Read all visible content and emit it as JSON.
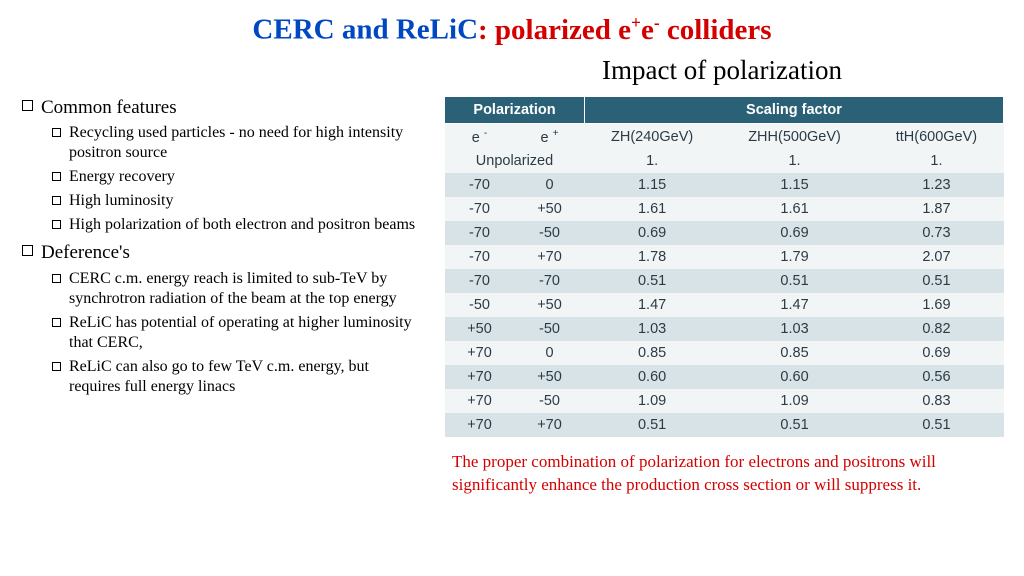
{
  "title": {
    "part1": "CERC and ReLiC",
    "part2_prefix": ": polarized e",
    "part2_sup1": "+",
    "part2_mid": "e",
    "part2_sup2": "-",
    "part2_suffix": " colliders"
  },
  "subtitle": "Impact of polarization",
  "left": {
    "sections": [
      {
        "heading": "Common features",
        "items": [
          "Recycling used particles - no need for high intensity positron source",
          "Energy recovery",
          "High luminosity",
          "High polarization of both electron and positron beams"
        ]
      },
      {
        "heading": "Deference's",
        "items": [
          "CERC c.m. energy reach is limited to sub-TeV by synchrotron radiation of the beam at the top energy",
          "ReLiC has potential of operating at higher luminosity that CERC,",
          "ReLiC can also go to few TeV c.m. energy, but requires full energy linacs"
        ]
      }
    ]
  },
  "table": {
    "header_group1": "Polarization",
    "header_group2": "Scaling factor",
    "cols": [
      "e⁻",
      "e⁺",
      "ZH(240GeV)",
      "ZHH(500GeV)",
      "ttH(600GeV)"
    ],
    "unpolarized_label": "Unpolarized",
    "unpolarized_vals": [
      "1.",
      "1.",
      "1."
    ],
    "rows": [
      [
        "-70",
        "0",
        "1.15",
        "1.15",
        "1.23"
      ],
      [
        "-70",
        "+50",
        "1.61",
        "1.61",
        "1.87"
      ],
      [
        "-70",
        "-50",
        "0.69",
        "0.69",
        "0.73"
      ],
      [
        "-70",
        "+70",
        "1.78",
        "1.79",
        "2.07"
      ],
      [
        "-70",
        "-70",
        "0.51",
        "0.51",
        "0.51"
      ],
      [
        "-50",
        "+50",
        "1.47",
        "1.47",
        "1.69"
      ],
      [
        "+50",
        "-50",
        "1.03",
        "1.03",
        "0.82"
      ],
      [
        "+70",
        "0",
        "0.85",
        "0.85",
        "0.69"
      ],
      [
        "+70",
        "+50",
        "0.60",
        "0.60",
        "0.56"
      ],
      [
        "+70",
        "-50",
        "1.09",
        "1.09",
        "0.83"
      ],
      [
        "+70",
        "+70",
        "0.51",
        "0.51",
        "0.51"
      ]
    ],
    "col_widths": [
      "70px",
      "70px",
      "auto",
      "auto",
      "auto"
    ],
    "header_bg": "#2b6177",
    "header_fg": "#ffffff",
    "row_odd_bg": "#d8e3e7",
    "row_even_bg": "#f2f5f6",
    "text_color": "#2b3b45"
  },
  "caption": "The proper combination of polarization for electrons and positrons will significantly enhance the production cross section or will suppress it."
}
